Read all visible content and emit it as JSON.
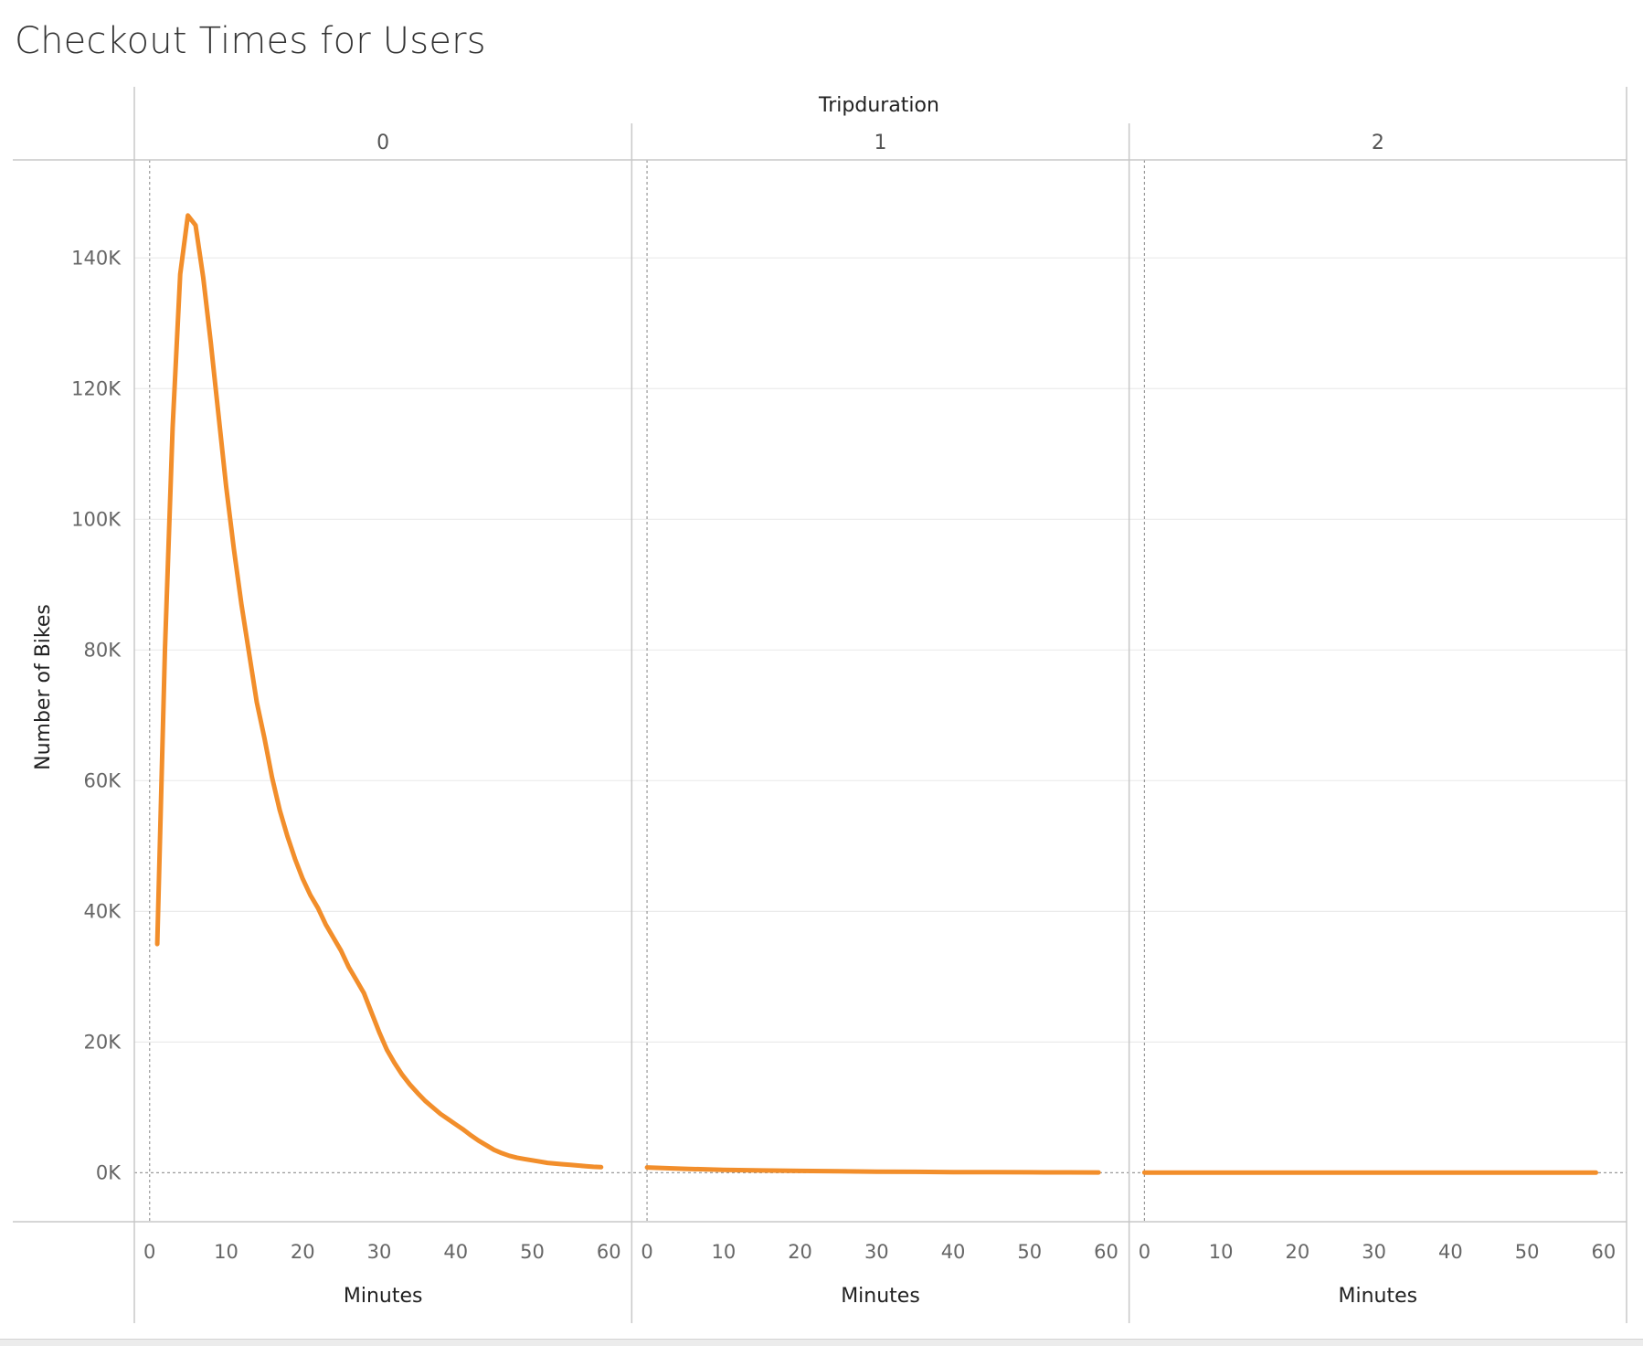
{
  "title": "Checkout Times for Users",
  "chart_data": {
    "type": "line",
    "title": "Checkout Times for Users",
    "column_header_title": "Tripduration",
    "ylabel": "Number of Bikes",
    "xlabel": "Minutes",
    "ylim": [
      -7500,
      155000
    ],
    "xlim": [
      -2,
      63
    ],
    "yticks": [
      0,
      20000,
      40000,
      60000,
      80000,
      100000,
      120000,
      140000
    ],
    "ytick_labels": [
      "0K",
      "20K",
      "40K",
      "60K",
      "80K",
      "100K",
      "120K",
      "140K"
    ],
    "xticks": [
      0,
      10,
      20,
      30,
      40,
      50,
      60
    ],
    "xtick_labels": [
      "0",
      "10",
      "20",
      "30",
      "40",
      "50",
      "60"
    ],
    "line_color": "#f28e2b",
    "grid": true,
    "panels": [
      {
        "label": "0",
        "x": [
          1,
          2,
          3,
          4,
          5,
          6,
          7,
          8,
          9,
          10,
          11,
          12,
          13,
          14,
          15,
          16,
          17,
          18,
          19,
          20,
          21,
          22,
          23,
          24,
          25,
          26,
          27,
          28,
          29,
          30,
          31,
          32,
          33,
          34,
          35,
          36,
          37,
          38,
          39,
          40,
          41,
          42,
          43,
          44,
          45,
          46,
          47,
          48,
          49,
          50,
          51,
          52,
          53,
          54,
          55,
          56,
          57,
          58,
          59
        ],
        "y": [
          35000,
          80000,
          114000,
          137500,
          146500,
          145000,
          137000,
          127000,
          116000,
          105000,
          95500,
          87000,
          79500,
          72000,
          66500,
          60500,
          55500,
          51500,
          48000,
          45000,
          42500,
          40500,
          38000,
          36000,
          34000,
          31500,
          29500,
          27500,
          24500,
          21500,
          18800,
          16800,
          15000,
          13500,
          12200,
          11000,
          10000,
          9000,
          8200,
          7400,
          6600,
          5700,
          4900,
          4200,
          3500,
          3000,
          2600,
          2300,
          2100,
          1900,
          1700,
          1500,
          1400,
          1300,
          1200,
          1100,
          1000,
          900,
          850
        ]
      },
      {
        "label": "1",
        "x": [
          0,
          5,
          10,
          15,
          20,
          25,
          30,
          35,
          40,
          45,
          50,
          55,
          59
        ],
        "y": [
          800,
          600,
          450,
          350,
          280,
          220,
          170,
          130,
          100,
          80,
          60,
          45,
          35
        ]
      },
      {
        "label": "2",
        "x": [
          0,
          10,
          20,
          30,
          40,
          50,
          59
        ],
        "y": [
          20,
          15,
          12,
          10,
          8,
          6,
          5
        ]
      }
    ]
  }
}
